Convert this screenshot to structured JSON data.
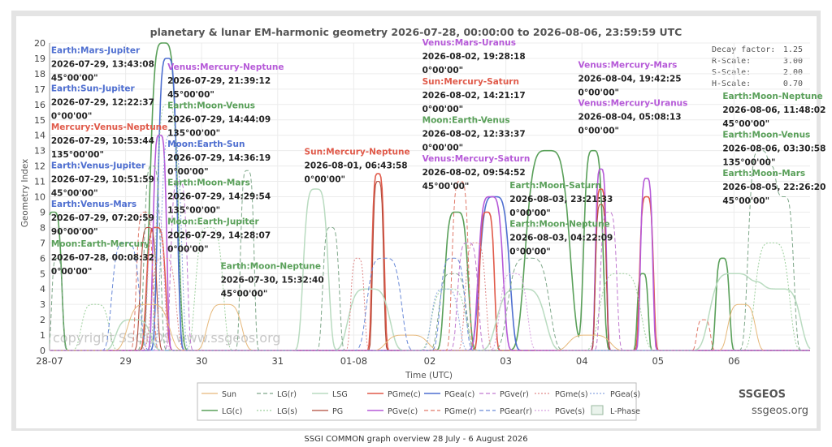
{
  "chart_data": {
    "type": "line",
    "title": "planetary & lunar EM-harmonic geometry 2026-07-28, 00:00:00 to 2026-08-06, 23:59:59 UTC",
    "xlabel": "Time (UTC)",
    "ylabel": "Geometry Index",
    "ylim": [
      0,
      20
    ],
    "xlim": [
      0,
      10
    ],
    "x_ticks": [
      {
        "x": 0,
        "label": "28-07"
      },
      {
        "x": 1,
        "label": "29"
      },
      {
        "x": 2,
        "label": "30"
      },
      {
        "x": 3,
        "label": "31"
      },
      {
        "x": 4,
        "label": "01-08"
      },
      {
        "x": 5,
        "label": "02"
      },
      {
        "x": 6,
        "label": "03"
      },
      {
        "x": 7,
        "label": "04"
      },
      {
        "x": 8,
        "label": "05"
      },
      {
        "x": 9,
        "label": "06"
      }
    ],
    "y_ticks": [
      0,
      1,
      2,
      3,
      4,
      5,
      6,
      7,
      8,
      9,
      10,
      11,
      12,
      13,
      14,
      15,
      16,
      17,
      18,
      19,
      20
    ],
    "grid": true,
    "legend_placement": "bottom-center",
    "params": {
      "decay": {
        "label": "Decay factor:",
        "value": "1.25"
      },
      "r_scale": {
        "label": "R-Scale:",
        "value": "3.00"
      },
      "s_scale": {
        "label": "S-Scale:",
        "value": "2.00"
      },
      "h_scale": {
        "label": "H-Scale:",
        "value": "0.70"
      }
    },
    "watermark": "copyright SSGEOS  www.ssgeos.org",
    "brand": "SSGEOS",
    "brand_url": "ssgeos.org",
    "legend": [
      {
        "label": "Sun",
        "color": "#e6b87a",
        "dash": "",
        "width": 1
      },
      {
        "label": "LG(r)",
        "color": "#7fa88a",
        "dash": "5,3",
        "width": 1
      },
      {
        "label": "LSG",
        "color": "#b9dbc0",
        "dash": "",
        "width": 1.5
      },
      {
        "label": "PGme(c)",
        "color": "#e05a4a",
        "dash": "",
        "width": 1.5
      },
      {
        "label": "PGea(c)",
        "color": "#4f6fd0",
        "dash": "",
        "width": 1.5
      },
      {
        "label": "PGve(r)",
        "color": "#c07ad0",
        "dash": "5,3",
        "width": 1
      },
      {
        "label": "PGme(s)",
        "color": "#e08a8a",
        "dash": "2,2",
        "width": 1
      },
      {
        "label": "PGea(s)",
        "color": "#8ca8e0",
        "dash": "2,2",
        "width": 1
      },
      {
        "label": "LG(c)",
        "color": "#5aa05a",
        "dash": "",
        "width": 1.5
      },
      {
        "label": "LG(s)",
        "color": "#9ed09e",
        "dash": "2,2",
        "width": 1
      },
      {
        "label": "PG",
        "color": "#b04a3a",
        "dash": "",
        "width": 1
      },
      {
        "label": "PGve(c)",
        "color": "#b65ad8",
        "dash": "",
        "width": 1.5
      },
      {
        "label": "PGme(r)",
        "color": "#e07a6a",
        "dash": "5,3",
        "width": 1
      },
      {
        "label": "PGear(r)",
        "color": "#6a8ad8",
        "dash": "5,3",
        "width": 1
      },
      {
        "label": "PGve(s)",
        "color": "#d8a0e0",
        "dash": "2,2",
        "width": 1
      },
      {
        "label": "L-Phase",
        "color": "#bcd9c0",
        "dash": "",
        "width": 0,
        "box": true
      }
    ],
    "series": [
      {
        "name": "LG(c)",
        "color": "#5aa05a",
        "width": 1.6,
        "dash": "",
        "peaks": [
          [
            0.05,
            9.0,
            0.12
          ],
          [
            1.5,
            20.0,
            0.2
          ],
          [
            5.35,
            9.0,
            0.17
          ],
          [
            6.55,
            13.0,
            0.32
          ],
          [
            7.15,
            13.0,
            0.14
          ],
          [
            7.8,
            5.0,
            0.08
          ],
          [
            8.85,
            6.0,
            0.1
          ]
        ]
      },
      {
        "name": "PGea(c)",
        "color": "#4f6fd0",
        "width": 1.6,
        "dash": "",
        "peaks": [
          [
            1.55,
            19.0,
            0.14
          ],
          [
            5.85,
            10.0,
            0.22
          ]
        ]
      },
      {
        "name": "PGme(c)",
        "color": "#e05a4a",
        "width": 1.6,
        "dash": "",
        "peaks": [
          [
            1.4,
            8.0,
            0.14
          ],
          [
            4.32,
            11.5,
            0.09
          ],
          [
            5.75,
            9.0,
            0.11
          ],
          [
            7.25,
            10.5,
            0.08
          ],
          [
            7.85,
            10.0,
            0.1
          ]
        ]
      },
      {
        "name": "PGve(c)",
        "color": "#b65ad8",
        "width": 1.6,
        "dash": "",
        "peaks": [
          [
            1.45,
            14.0,
            0.1
          ],
          [
            5.8,
            10.0,
            0.18
          ],
          [
            7.25,
            11.8,
            0.08
          ],
          [
            7.85,
            11.2,
            0.09
          ]
        ]
      },
      {
        "name": "PG",
        "color": "#b04a3a",
        "width": 1.1,
        "dash": "",
        "peaks": [
          [
            1.3,
            8.0,
            0.12
          ],
          [
            4.32,
            11.0,
            0.08
          ],
          [
            7.25,
            9.5,
            0.08
          ]
        ]
      },
      {
        "name": "LSG",
        "color": "#b9dbc0",
        "width": 1.5,
        "dash": "",
        "peaks": [
          [
            1.1,
            2.0,
            0.25
          ],
          [
            3.5,
            10.5,
            0.18
          ],
          [
            4.2,
            4.0,
            0.3
          ],
          [
            6.2,
            4.0,
            0.35
          ],
          [
            9.0,
            5.0,
            0.35
          ],
          [
            9.6,
            4.0,
            0.3
          ]
        ]
      },
      {
        "name": "LG(r)",
        "color": "#7fa88a",
        "width": 1.0,
        "dash": "5,3",
        "peaks": [
          [
            0.1,
            6.0,
            0.08
          ],
          [
            1.35,
            12.0,
            0.12
          ],
          [
            2.6,
            11.7,
            0.1
          ],
          [
            3.7,
            8.0,
            0.12
          ],
          [
            5.3,
            5.0,
            0.2
          ],
          [
            6.3,
            6.0,
            0.3
          ],
          [
            9.35,
            13.0,
            0.18
          ],
          [
            9.65,
            10.0,
            0.15
          ]
        ]
      },
      {
        "name": "LG(s)",
        "color": "#9ed09e",
        "width": 1.0,
        "dash": "2,2",
        "peaks": [
          [
            0.6,
            3.0,
            0.2
          ],
          [
            1.55,
            16.0,
            0.16
          ],
          [
            2.1,
            8.0,
            0.2
          ],
          [
            5.25,
            4.0,
            0.25
          ],
          [
            7.5,
            5.0,
            0.3
          ],
          [
            9.5,
            7.0,
            0.25
          ]
        ]
      },
      {
        "name": "Sun",
        "color": "#e6b87a",
        "width": 1.0,
        "dash": "",
        "peaks": [
          [
            1.3,
            3.0,
            0.3
          ],
          [
            2.3,
            3.0,
            0.25
          ],
          [
            4.7,
            1.0,
            0.3
          ],
          [
            7.1,
            1.0,
            0.3
          ],
          [
            9.1,
            3.0,
            0.2
          ]
        ]
      },
      {
        "name": "PGme(r)",
        "color": "#e07a6a",
        "width": 1.0,
        "dash": "5,3",
        "peaks": [
          [
            1.25,
            9.0,
            0.12
          ],
          [
            5.4,
            11.0,
            0.12
          ],
          [
            8.6,
            2.0,
            0.1
          ]
        ]
      },
      {
        "name": "PGme(s)",
        "color": "#e08a8a",
        "width": 1.0,
        "dash": "2,2",
        "peaks": [
          [
            1.5,
            6.0,
            0.18
          ],
          [
            4.05,
            6.0,
            0.1
          ],
          [
            5.6,
            7.0,
            0.15
          ]
        ]
      },
      {
        "name": "PGear(r)",
        "color": "#6a8ad8",
        "width": 1.0,
        "dash": "5,3",
        "peaks": [
          [
            1.0,
            7.0,
            0.2
          ],
          [
            4.4,
            6.0,
            0.25
          ],
          [
            5.3,
            6.0,
            0.18
          ]
        ]
      },
      {
        "name": "PGea(s)",
        "color": "#8ca8e0",
        "width": 1.0,
        "dash": "2,2",
        "peaks": [
          [
            1.6,
            14.0,
            0.15
          ],
          [
            5.2,
            4.0,
            0.2
          ]
        ]
      },
      {
        "name": "PGve(r)",
        "color": "#c07ad0",
        "width": 1.0,
        "dash": "5,3",
        "peaks": [
          [
            1.7,
            11.0,
            0.12
          ],
          [
            5.5,
            7.0,
            0.15
          ],
          [
            7.35,
            9.0,
            0.12
          ]
        ]
      },
      {
        "name": "PGve(s)",
        "color": "#d8a0e0",
        "width": 1.0,
        "dash": "2,2",
        "peaks": [
          [
            1.4,
            9.0,
            0.12
          ],
          [
            6.1,
            5.0,
            0.2
          ]
        ]
      }
    ],
    "annotations": [
      {
        "x": 0.02,
        "y": 19.35,
        "color": "#4f6fd0",
        "name": "Earth:Mars-Jupiter",
        "date": "2026-07-29, 13:43:08",
        "angle": "45°00'00\""
      },
      {
        "x": 0.02,
        "y": 16.85,
        "color": "#4f6fd0",
        "name": "Earth:Sun-Jupiter",
        "date": "2026-07-29, 12:22:37",
        "angle": "0°00'00\""
      },
      {
        "x": 0.02,
        "y": 14.35,
        "color": "#e05a4a",
        "name": "Mercury:Venus-Neptune",
        "date": "2026-07-29, 10:53:44",
        "angle": "135°00'00\""
      },
      {
        "x": 0.02,
        "y": 11.85,
        "color": "#4f6fd0",
        "name": "Earth:Venus-Jupiter",
        "date": "2026-07-29, 10:51:59",
        "angle": "45°00'00\""
      },
      {
        "x": 0.02,
        "y": 9.35,
        "color": "#4f6fd0",
        "name": "Earth:Venus-Mars",
        "date": "2026-07-29, 07:20:59",
        "angle": "90°00'00\""
      },
      {
        "x": 0.02,
        "y": 6.75,
        "color": "#5aa05a",
        "name": "Moon:Earth-Mercury",
        "date": "2026-07-28, 00:08:32",
        "angle": "0°00'00\""
      },
      {
        "x": 1.55,
        "y": 18.25,
        "color": "#b65ad8",
        "name": "Venus:Mercury-Neptune",
        "date": "2026-07-29, 21:39:12",
        "angle": "45°00'00\""
      },
      {
        "x": 1.55,
        "y": 15.75,
        "color": "#5aa05a",
        "name": "Earth:Moon-Venus",
        "date": "2026-07-29, 14:44:09",
        "angle": "135°00'00\""
      },
      {
        "x": 1.55,
        "y": 13.25,
        "color": "#4f6fd0",
        "name": "Moon:Earth-Sun",
        "date": "2026-07-29, 14:36:19",
        "angle": "0°00'00\""
      },
      {
        "x": 1.55,
        "y": 10.75,
        "color": "#5aa05a",
        "name": "Earth:Moon-Mars",
        "date": "2026-07-29, 14:29:54",
        "angle": "135°00'00\""
      },
      {
        "x": 1.55,
        "y": 8.2,
        "color": "#5aa05a",
        "name": "Moon:Earth-Jupiter",
        "date": "2026-07-29, 14:28:07",
        "angle": "0°00'00\""
      },
      {
        "x": 2.25,
        "y": 5.3,
        "color": "#5aa05a",
        "name": "Earth:Moon-Neptune",
        "date": "2026-07-30, 15:32:40",
        "angle": "45°00'00\""
      },
      {
        "x": 3.35,
        "y": 12.75,
        "color": "#e05a4a",
        "name": "Sun:Mercury-Neptune",
        "date": "2026-08-01, 06:43:58",
        "angle": "0°00'00\""
      },
      {
        "x": 4.9,
        "y": 19.85,
        "color": "#b65ad8",
        "name": "Venus:Mars-Uranus",
        "date": "2026-08-02, 19:28:18",
        "angle": "0°00'00\""
      },
      {
        "x": 4.9,
        "y": 17.3,
        "color": "#e05a4a",
        "name": "Sun:Mercury-Saturn",
        "date": "2026-08-02, 14:21:17",
        "angle": "0°00'00\""
      },
      {
        "x": 4.9,
        "y": 14.8,
        "color": "#5aa05a",
        "name": "Moon:Earth-Venus",
        "date": "2026-08-02, 12:33:37",
        "angle": "0°00'00\""
      },
      {
        "x": 4.9,
        "y": 12.3,
        "color": "#b65ad8",
        "name": "Venus:Mercury-Saturn",
        "date": "2026-08-02, 09:54:52",
        "angle": "45°00'00\""
      },
      {
        "x": 6.05,
        "y": 10.55,
        "color": "#5aa05a",
        "name": "Earth:Moon-Saturn",
        "date": "2026-08-03, 23:21:33",
        "angle": "0°00'00\""
      },
      {
        "x": 6.05,
        "y": 8.05,
        "color": "#5aa05a",
        "name": "Earth:Moon-Neptune",
        "date": "2026-08-03, 04:22:09",
        "angle": "0°00'00\""
      },
      {
        "x": 6.95,
        "y": 18.4,
        "color": "#b65ad8",
        "name": "Venus:Mercury-Mars",
        "date": "2026-08-04, 19:42:25",
        "angle": "0°00'00\""
      },
      {
        "x": 6.95,
        "y": 15.9,
        "color": "#b65ad8",
        "name": "Venus:Mercury-Uranus",
        "date": "2026-08-04, 05:08:13",
        "angle": "0°00'00\""
      },
      {
        "x": 8.85,
        "y": 16.35,
        "color": "#5aa05a",
        "name": "Earth:Moon-Neptune",
        "date": "2026-08-06, 11:48:02",
        "angle": "45°00'00\""
      },
      {
        "x": 8.85,
        "y": 13.85,
        "color": "#5aa05a",
        "name": "Earth:Moon-Venus",
        "date": "2026-08-06, 03:30:58",
        "angle": "135°00'00\""
      },
      {
        "x": 8.85,
        "y": 11.35,
        "color": "#5aa05a",
        "name": "Earth:Moon-Mars",
        "date": "2026-08-05, 22:26:20",
        "angle": "45°00'00\""
      }
    ]
  },
  "caption": "SSGI COMMON graph overview 28 July - 6 August 2026"
}
